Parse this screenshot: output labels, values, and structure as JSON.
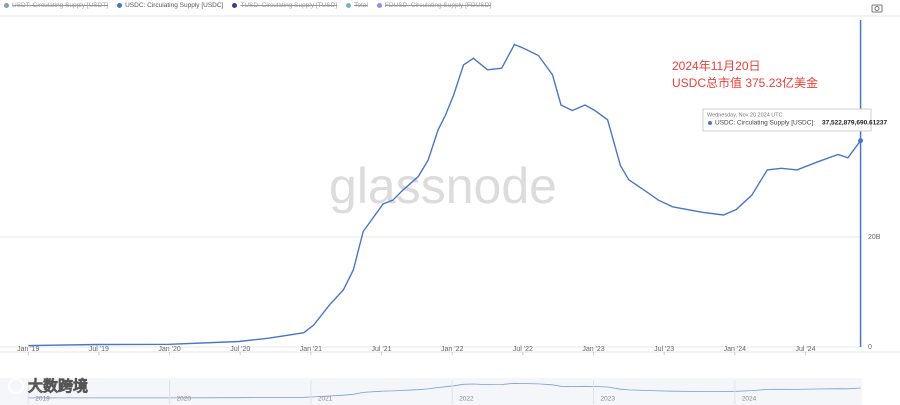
{
  "chart_data": {
    "type": "line",
    "legend": [
      {
        "name": "USDT: Circulating Supply [USDT]",
        "color": "#8a9bb5",
        "hidden": true
      },
      {
        "name": "USDC: Circulating Supply [USDC]",
        "color": "#4a76c7",
        "hidden": false
      },
      {
        "name": "TUSD: Circulating Supply [TUSD]",
        "color": "#3b3f8f",
        "hidden": true
      },
      {
        "name": "Total",
        "color": "#6fb7c9",
        "hidden": true
      },
      {
        "name": "FDUSD: Circulating Supply [FDUSD]",
        "color": "#8b8fe0",
        "hidden": true
      }
    ],
    "watermark": "glassnode",
    "annotation": [
      "2024年11月20日",
      "USDC总市值 375.23亿美金"
    ],
    "annotation_color": "#e8403a",
    "tooltip": {
      "date": "Wednesday, Nov 20 2024 UTC",
      "label": "USDC: Circulating Supply [USDC]:",
      "value": "37,522,879,690.61237"
    },
    "logo_text": "大数跨境",
    "color": "#4a76c7",
    "grid": true,
    "xlim": [
      2018.8,
      2024.9
    ],
    "xticks": [
      {
        "value": 2019,
        "label": "Jan '19"
      },
      {
        "value": 2019.5,
        "label": "Jul '19"
      },
      {
        "value": 2020,
        "label": "Jan '20"
      },
      {
        "value": 2020.5,
        "label": "Jul '20"
      },
      {
        "value": 2021,
        "label": "Jan '21"
      },
      {
        "value": 2021.5,
        "label": "Jul '21"
      },
      {
        "value": 2022,
        "label": "Jan '22"
      },
      {
        "value": 2022.5,
        "label": "Jul '22"
      },
      {
        "value": 2023,
        "label": "Jan '23"
      },
      {
        "value": 2023.5,
        "label": "Jul '23"
      },
      {
        "value": 2024,
        "label": "Jan '24"
      },
      {
        "value": 2024.5,
        "label": "Jul '24"
      }
    ],
    "ylim": [
      0,
      60000000000
    ],
    "yticks": [
      0,
      {
        "value": 20000000000,
        "label": "20B"
      }
    ],
    "navigator_xticks": [
      2019,
      2020,
      2021,
      2022,
      2023,
      2024
    ],
    "x": [
      2019.0,
      2019.5,
      2020.0,
      2020.49,
      2020.7,
      2020.85,
      2020.95,
      2021.02,
      2021.13,
      2021.23,
      2021.3,
      2021.37,
      2021.51,
      2021.58,
      2021.65,
      2021.76,
      2021.83,
      2021.9,
      2021.95,
      2022.01,
      2022.08,
      2022.15,
      2022.25,
      2022.35,
      2022.44,
      2022.49,
      2022.61,
      2022.71,
      2022.77,
      2022.85,
      2022.94,
      2023.01,
      2023.1,
      2023.19,
      2023.25,
      2023.36,
      2023.46,
      2023.56,
      2023.77,
      2023.92,
      2024.01,
      2024.12,
      2024.23,
      2024.33,
      2024.44,
      2024.58,
      2024.73,
      2024.8,
      2024.89
    ],
    "values": [
      250000000,
      450000000,
      500000000,
      1000000000,
      1600000000,
      2200000000,
      2600000000,
      4000000000,
      7600000000,
      10400000000,
      14000000000,
      21000000000,
      26000000000,
      26700000000,
      28500000000,
      31000000000,
      34000000000,
      39500000000,
      42000000000,
      45800000000,
      51300000000,
      52500000000,
      50400000000,
      50700000000,
      55000000000,
      54500000000,
      53000000000,
      49500000000,
      44000000000,
      43000000000,
      44000000000,
      43000000000,
      41300000000,
      33000000000,
      30400000000,
      28500000000,
      26700000000,
      25500000000,
      24500000000,
      24000000000,
      25000000000,
      27600000000,
      32200000000,
      32500000000,
      32200000000,
      33600000000,
      35000000000,
      34400000000,
      37522879690.61237
    ]
  }
}
